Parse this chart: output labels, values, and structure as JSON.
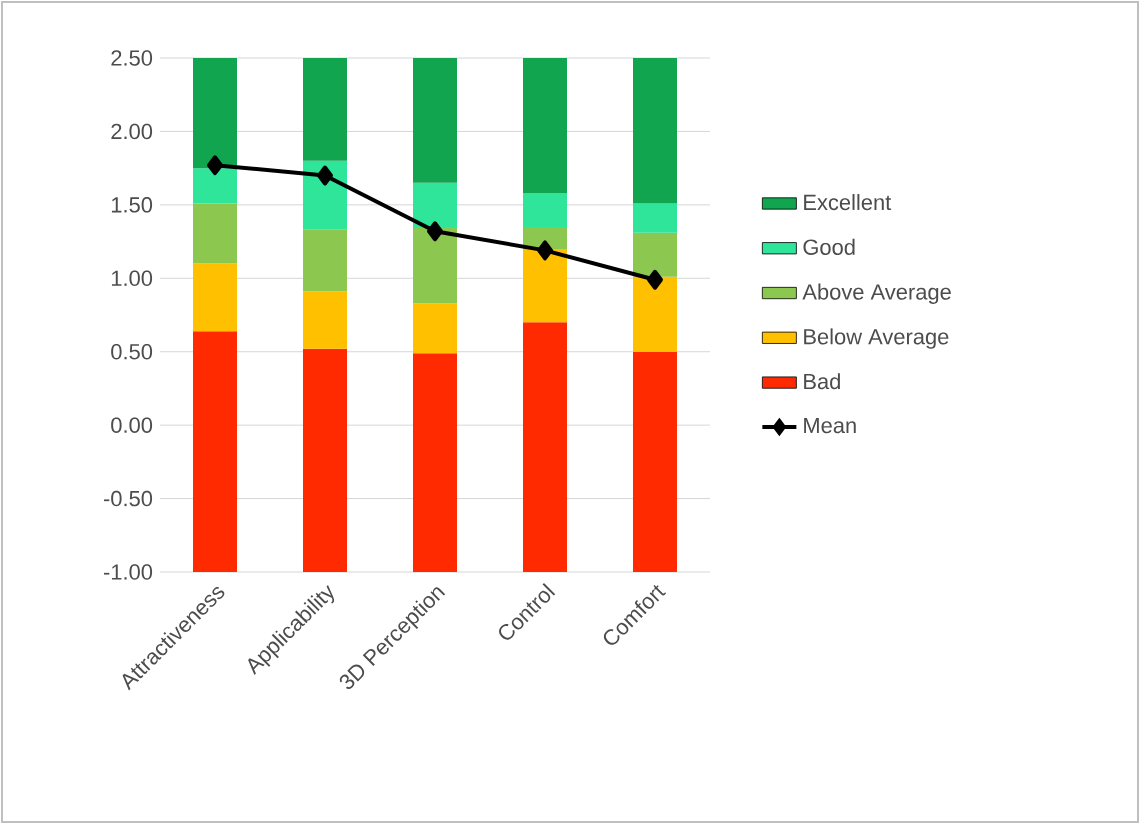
{
  "chart_data": {
    "type": "bar",
    "categories": [
      "Attractiveness",
      "Applicability",
      "3D Perception",
      "Control",
      "Comfort"
    ],
    "series": [
      {
        "name": "Bad",
        "color": "#ff2a00",
        "base": [
          -1,
          -1,
          -1,
          -1,
          -1
        ],
        "values": [
          1.64,
          1.52,
          1.49,
          1.7,
          1.5
        ]
      },
      {
        "name": "Below Average",
        "color": "#ffc000",
        "base": [
          0.64,
          0.52,
          0.49,
          0.7,
          0.5
        ],
        "values": [
          0.46,
          0.39,
          0.34,
          0.5,
          0.51
        ]
      },
      {
        "name": "Above Average",
        "color": "#8cc850",
        "base": [
          1.1,
          0.91,
          0.83,
          1.2,
          1.01
        ],
        "values": [
          0.41,
          0.42,
          0.52,
          0.15,
          0.3
        ]
      },
      {
        "name": "Good",
        "color": "#2ee59a",
        "base": [
          1.51,
          1.33,
          1.35,
          1.35,
          1.31
        ],
        "values": [
          0.24,
          0.47,
          0.3,
          0.23,
          0.2
        ]
      },
      {
        "name": "Excellent",
        "color": "#11a550",
        "base": [
          1.75,
          1.8,
          1.65,
          1.58,
          1.51
        ],
        "values": [
          0.75,
          0.7,
          0.85,
          0.92,
          0.99
        ]
      },
      {
        "name": "Mean",
        "type": "line",
        "color": "#000000",
        "marker": "diamond",
        "line_style": "solid",
        "values": [
          1.77,
          1.7,
          1.32,
          1.19,
          0.99
        ]
      }
    ],
    "ylim": [
      -1,
      2.5
    ],
    "yticks": [
      {
        "value": -1,
        "label": "-1.00"
      },
      {
        "value": -0.5,
        "label": "-0.50"
      },
      {
        "value": 0,
        "label": "0.00"
      },
      {
        "value": 0.5,
        "label": "0.50"
      },
      {
        "value": 1,
        "label": "1.00"
      },
      {
        "value": 1.5,
        "label": "1.50"
      },
      {
        "value": 2,
        "label": "2.00"
      },
      {
        "value": 2.5,
        "label": "2.50"
      }
    ],
    "grid": "y",
    "legend": "right"
  }
}
